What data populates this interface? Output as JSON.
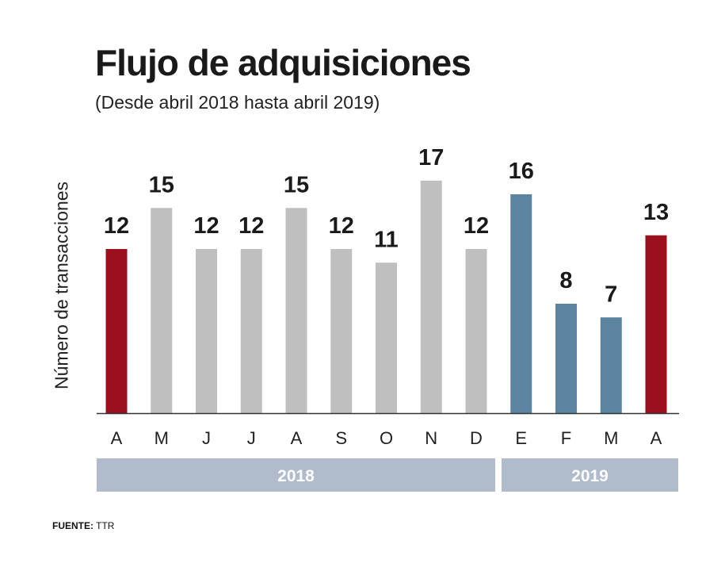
{
  "chart_data": {
    "type": "bar",
    "title": "Flujo de adquisiciones",
    "subtitle": "(Desde abril 2018 hasta abril 2019)",
    "ylabel": "Número de transacciones",
    "categories": [
      "A",
      "M",
      "J",
      "J",
      "A",
      "S",
      "O",
      "N",
      "D",
      "E",
      "F",
      "M",
      "A"
    ],
    "values": [
      12,
      15,
      12,
      12,
      15,
      12,
      11,
      17,
      12,
      16,
      8,
      7,
      13
    ],
    "bar_colors": [
      "#9b0f1e",
      "#c0bfbf",
      "#c0bfbf",
      "#c0bfbf",
      "#c0bfbf",
      "#c0bfbf",
      "#c0bfbf",
      "#c0bfbf",
      "#c0bfbf",
      "#5a84a0",
      "#5a84a0",
      "#5a84a0",
      "#9b0f1e"
    ],
    "year_groups": [
      {
        "label": "2018",
        "from": 0,
        "to": 8
      },
      {
        "label": "2019",
        "from": 9,
        "to": 12
      }
    ],
    "year_band_color": "#b0bccb",
    "ylim": [
      0,
      17
    ],
    "grid": false,
    "data_labels": true
  },
  "source": {
    "label": "FUENTE:",
    "value": "TTR"
  }
}
